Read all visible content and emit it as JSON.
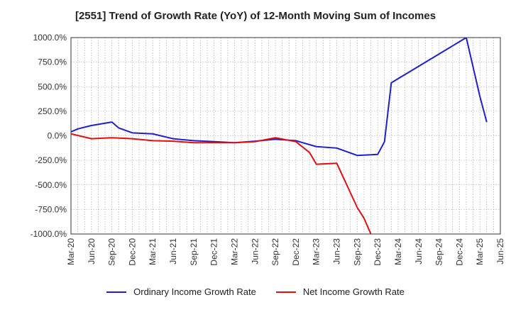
{
  "chart_data": {
    "type": "line",
    "title": "[2551]  Trend of Growth Rate (YoY) of 12-Month Moving Sum of Incomes",
    "xlabel": "",
    "ylabel": "",
    "ylim": [
      -1000,
      1000
    ],
    "y_ticks": [
      1000,
      750,
      500,
      250,
      0,
      -250,
      -500,
      -750,
      -1000
    ],
    "y_tick_labels": [
      "1000.0%",
      "750.0%",
      "500.0%",
      "250.0%",
      "0.0%",
      "-250.0%",
      "-500.0%",
      "-750.0%",
      "-1000.0%"
    ],
    "x_ticks": [
      "Mar-20",
      "Jun-20",
      "Sep-20",
      "Dec-20",
      "Mar-21",
      "Jun-21",
      "Sep-21",
      "Dec-21",
      "Mar-22",
      "Jun-22",
      "Sep-22",
      "Dec-22",
      "Mar-23",
      "Jun-23",
      "Sep-23",
      "Dec-23",
      "Mar-24",
      "Jun-24",
      "Sep-24",
      "Dec-24",
      "Mar-25",
      "Jun-25"
    ],
    "months": [
      "Mar-20",
      "Apr-20",
      "May-20",
      "Jun-20",
      "Jul-20",
      "Aug-20",
      "Sep-20",
      "Oct-20",
      "Nov-20",
      "Dec-20",
      "Jan-21",
      "Feb-21",
      "Mar-21",
      "Apr-21",
      "May-21",
      "Jun-21",
      "Jul-21",
      "Aug-21",
      "Sep-21",
      "Oct-21",
      "Nov-21",
      "Dec-21",
      "Jan-22",
      "Feb-22",
      "Mar-22",
      "Apr-22",
      "May-22",
      "Jun-22",
      "Jul-22",
      "Aug-22",
      "Sep-22",
      "Oct-22",
      "Nov-22",
      "Dec-22",
      "Jan-23",
      "Feb-23",
      "Mar-23",
      "Apr-23",
      "May-23",
      "Jun-23",
      "Jul-23",
      "Aug-23",
      "Sep-23",
      "Oct-23",
      "Nov-23",
      "Dec-23",
      "Jan-24",
      "Feb-24",
      "Mar-24",
      "Apr-24",
      "May-24",
      "Jun-24",
      "Jul-24",
      "Aug-24",
      "Sep-24",
      "Oct-24",
      "Nov-24",
      "Dec-24",
      "Jan-25",
      "Feb-25",
      "Mar-25",
      "Apr-25",
      "May-25",
      "Jun-25"
    ],
    "grid": true,
    "legend_position": "bottom",
    "series": [
      {
        "name": "Ordinary Income Growth Rate",
        "color": "#1f1fcf",
        "values": [
          40,
          70,
          null,
          105,
          null,
          null,
          140,
          80,
          null,
          30,
          null,
          null,
          20,
          null,
          null,
          -30,
          null,
          null,
          -50,
          null,
          null,
          -60,
          null,
          null,
          -70,
          null,
          null,
          -55,
          null,
          null,
          -35,
          null,
          null,
          -50,
          null,
          null,
          -110,
          null,
          null,
          -125,
          null,
          null,
          -200,
          null,
          null,
          -190,
          -60,
          540,
          null,
          null,
          null,
          null,
          null,
          null,
          null,
          null,
          null,
          null,
          1000,
          null,
          400,
          140,
          null,
          null
        ]
      },
      {
        "name": "Net Income Growth Rate",
        "color": "#e01010",
        "values": [
          20,
          null,
          null,
          -30,
          null,
          null,
          -20,
          null,
          null,
          -30,
          null,
          null,
          -50,
          null,
          null,
          -55,
          null,
          null,
          -70,
          null,
          null,
          -70,
          null,
          null,
          -70,
          null,
          null,
          -60,
          null,
          null,
          -20,
          null,
          null,
          -60,
          null,
          -170,
          -290,
          null,
          null,
          -280,
          null,
          null,
          -730,
          -840,
          -1000,
          null,
          null,
          null,
          null,
          null,
          null,
          null,
          null,
          null,
          null,
          null,
          null,
          null,
          null,
          null,
          null,
          null,
          null,
          null
        ]
      }
    ]
  }
}
